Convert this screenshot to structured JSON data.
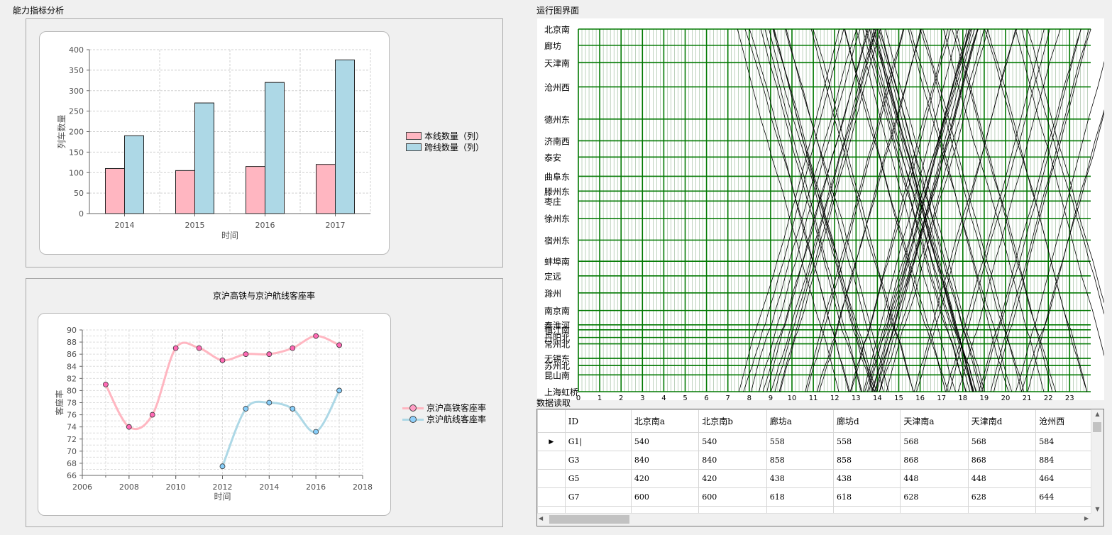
{
  "left_panel": {
    "capacity_group_title": "能力指标分析",
    "loadfactor_chart_title": "京沪高铁与京沪航线客座率"
  },
  "right_panel": {
    "timetable_group_title": "运行图界面",
    "data_group_title": "数据读取"
  },
  "chart_data": [
    {
      "type": "bar",
      "title": "",
      "categories": [
        "2014",
        "2015",
        "2016",
        "2017"
      ],
      "series": [
        {
          "name": "本线数量（列）",
          "color": "#ffb6c1",
          "values": [
            110,
            105,
            115,
            120
          ]
        },
        {
          "name": "跨线数量（列）",
          "color": "#add8e6",
          "values": [
            190,
            270,
            320,
            375
          ]
        }
      ],
      "xlabel": "时间",
      "ylabel": "列车数量",
      "ylim": [
        0,
        400
      ],
      "yticks": [
        0,
        50,
        100,
        150,
        200,
        250,
        300,
        350,
        400
      ],
      "grid": true,
      "legend": "right"
    },
    {
      "type": "line",
      "title": "京沪高铁与京沪航线客座率",
      "xlabel": "时间",
      "ylabel": "客座率",
      "xlim": [
        2006,
        2018
      ],
      "ylim": [
        66,
        90
      ],
      "xticks": [
        2006,
        2008,
        2010,
        2012,
        2014,
        2016,
        2018
      ],
      "yticks": [
        66,
        68,
        70,
        72,
        74,
        76,
        78,
        80,
        82,
        84,
        86,
        88,
        90
      ],
      "grid": true,
      "legend": "right",
      "smooth": true,
      "series": [
        {
          "name": "京沪高铁客座率",
          "line_color": "#ffb6c1",
          "marker_color": "#ff69b4",
          "x": [
            2007,
            2008,
            2009,
            2010,
            2011,
            2012,
            2013,
            2014,
            2015,
            2016,
            2017
          ],
          "y": [
            81,
            74,
            76,
            87,
            87,
            85,
            86,
            86,
            87,
            89,
            87.5
          ]
        },
        {
          "name": "京沪航线客座率",
          "line_color": "#add8e6",
          "marker_color": "#87cefa",
          "x": [
            2012,
            2013,
            2014,
            2015,
            2016,
            2017
          ],
          "y": [
            67.5,
            77,
            78,
            77,
            73.2,
            80
          ]
        }
      ]
    },
    {
      "type": "line",
      "title": "",
      "xlim": [
        0,
        24
      ],
      "xticks": [
        "0",
        "1",
        "2",
        "3",
        "4",
        "5",
        "6",
        "7",
        "8",
        "9",
        "10",
        "11",
        "12",
        "13",
        "14",
        "15",
        "16",
        "17",
        "18",
        "19",
        "20",
        "21",
        "22",
        "23"
      ],
      "stations": [
        "北京南",
        "廊坊",
        "天津南",
        "沧州西",
        "德州东",
        "济南西",
        "泰安",
        "曲阜东",
        "滕州东",
        "枣庄",
        "徐州东",
        "宿州东",
        "蚌埠南",
        "定远",
        "滁州",
        "南京南",
        "秦淮河",
        "镇江南",
        "丹阳北",
        "常州北",
        "无锡东",
        "苏州北",
        "昆山南",
        "上海虹桥"
      ],
      "station_km": [
        0,
        59,
        122,
        210,
        327,
        406,
        465,
        535,
        589,
        625,
        688,
        767,
        844,
        897,
        959,
        1023,
        1075,
        1093,
        1121,
        1144,
        1197,
        1223,
        1257,
        1318
      ],
      "grid": true,
      "grid_color": "#007800",
      "train_line_color": "#000000"
    }
  ],
  "grid": {
    "columns": [
      "ID",
      "北京南a",
      "北京南b",
      "廊坊a",
      "廊坊d",
      "天津南a",
      "天津南d",
      "沧州西"
    ],
    "rows": [
      [
        "G1|",
        "540",
        "540",
        "558",
        "558",
        "568",
        "568",
        "584"
      ],
      [
        "G3",
        "840",
        "840",
        "858",
        "858",
        "868",
        "868",
        "884"
      ],
      [
        "G5",
        "420",
        "420",
        "438",
        "438",
        "448",
        "448",
        "464"
      ],
      [
        "G7",
        "600",
        "600",
        "618",
        "618",
        "628",
        "628",
        "644"
      ],
      [
        "",
        "",
        "",
        "",
        "",
        "",
        "",
        ""
      ]
    ],
    "current_row_marker": "▶",
    "scroll_up_arrow": "▲",
    "scroll_down_arrow": "▼",
    "scroll_left_arrow": "◀",
    "scroll_right_arrow": "▶"
  }
}
